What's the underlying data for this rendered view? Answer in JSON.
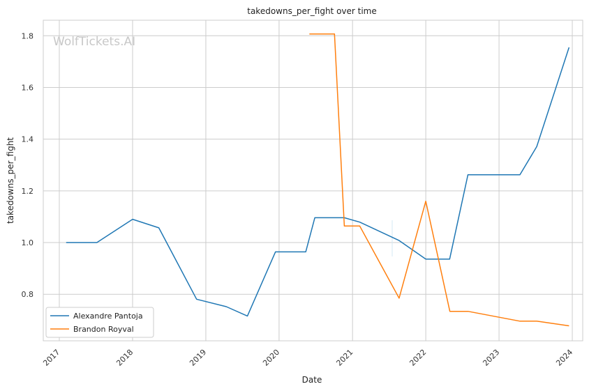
{
  "chart_data": {
    "type": "line",
    "title": "takedowns_per_fight over time",
    "xlabel": "Date",
    "ylabel": "takedowns_per_fight",
    "watermark": "WolfTickets.AI",
    "x_ticks": [
      "2017",
      "2018",
      "2019",
      "2020",
      "2021",
      "2022",
      "2023",
      "2024"
    ],
    "y_ticks": [
      "0.8",
      "1.0",
      "1.2",
      "1.4",
      "1.6",
      "1.8"
    ],
    "xlim": [
      "2016-10-13",
      "2024-02-22"
    ],
    "ylim": [
      0.62,
      1.86
    ],
    "grid": true,
    "legend_position": "lower-left",
    "series": [
      {
        "name": "Alexandre Pantoja",
        "color": "#1f77b4",
        "points": [
          [
            "2017-02-04",
            1.0
          ],
          [
            "2017-07-07",
            1.0
          ],
          [
            "2018-01-01",
            1.09
          ],
          [
            "2018-05-12",
            1.057
          ],
          [
            "2018-11-16",
            0.781
          ],
          [
            "2019-04-13",
            0.752
          ],
          [
            "2019-07-27",
            0.716
          ],
          [
            "2019-12-14",
            0.964
          ],
          [
            "2020-05-13",
            0.964
          ],
          [
            "2020-06-27",
            1.096
          ],
          [
            "2020-11-21",
            1.096
          ],
          [
            "2021-02-06",
            1.079
          ],
          [
            "2021-08-21",
            1.008
          ],
          [
            "2022-01-01",
            0.936
          ],
          [
            "2022-04-30",
            0.936
          ],
          [
            "2022-07-30",
            1.262
          ],
          [
            "2023-04-15",
            1.262
          ],
          [
            "2023-07-08",
            1.371
          ],
          [
            "2023-12-16",
            1.755
          ]
        ]
      },
      {
        "name": "Brandon Royval",
        "color": "#ff7f0e",
        "points": [
          [
            "2020-05-31",
            1.807
          ],
          [
            "2020-10-03",
            1.807
          ],
          [
            "2020-11-21",
            1.064
          ],
          [
            "2021-02-06",
            1.064
          ],
          [
            "2021-08-21",
            0.785
          ],
          [
            "2022-01-01",
            1.16
          ],
          [
            "2022-05-01",
            0.734
          ],
          [
            "2022-07-30",
            0.734
          ],
          [
            "2023-04-15",
            0.696
          ],
          [
            "2023-07-08",
            0.696
          ],
          [
            "2023-12-16",
            0.678
          ]
        ]
      }
    ]
  }
}
